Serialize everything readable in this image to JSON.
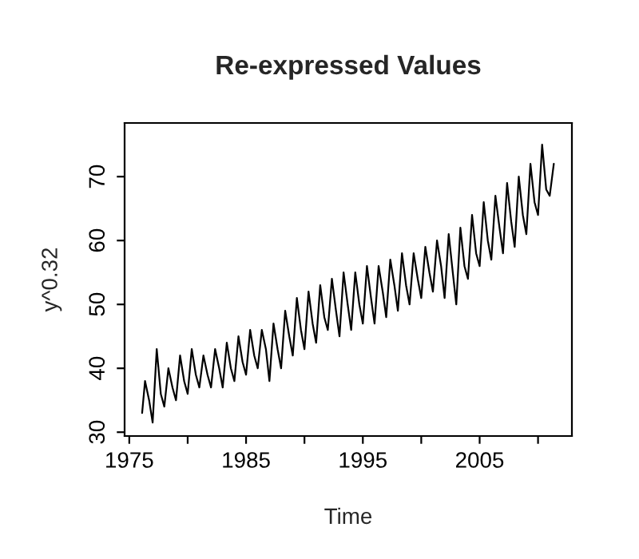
{
  "chart_data": {
    "type": "line",
    "title": "Re-expressed Values",
    "xlabel": "Time",
    "ylabel": "y^0.32",
    "x": [
      1976.1,
      1976.35,
      1976.7,
      1977.0,
      1977.35,
      1977.7,
      1978.0,
      1978.35,
      1978.7,
      1979.0,
      1979.35,
      1979.7,
      1980.0,
      1980.35,
      1980.7,
      1981.0,
      1981.35,
      1981.7,
      1982.0,
      1982.35,
      1982.7,
      1983.0,
      1983.35,
      1983.7,
      1984.0,
      1984.35,
      1984.7,
      1985.0,
      1985.35,
      1985.7,
      1986.0,
      1986.35,
      1986.7,
      1987.0,
      1987.35,
      1987.7,
      1988.0,
      1988.35,
      1988.7,
      1989.0,
      1989.35,
      1989.7,
      1990.0,
      1990.35,
      1990.7,
      1991.0,
      1991.35,
      1991.7,
      1992.0,
      1992.35,
      1992.7,
      1993.0,
      1993.35,
      1993.7,
      1994.0,
      1994.35,
      1994.7,
      1995.0,
      1995.35,
      1995.7,
      1996.0,
      1996.35,
      1996.7,
      1997.0,
      1997.35,
      1997.7,
      1998.0,
      1998.35,
      1998.7,
      1999.0,
      1999.35,
      1999.7,
      2000.0,
      2000.35,
      2000.7,
      2001.0,
      2001.35,
      2001.7,
      2002.0,
      2002.35,
      2002.7,
      2003.0,
      2003.35,
      2003.7,
      2004.0,
      2004.35,
      2004.7,
      2005.0,
      2005.35,
      2005.7,
      2006.0,
      2006.35,
      2006.7,
      2007.0,
      2007.35,
      2007.7,
      2008.0,
      2008.35,
      2008.7,
      2009.0,
      2009.35,
      2009.7,
      2010.0,
      2010.35,
      2010.7,
      2011.0,
      2011.35
    ],
    "series": [
      {
        "color": "#000000",
        "values": [
          33,
          38,
          35,
          31.5,
          43,
          36,
          34,
          40,
          37,
          35,
          42,
          38,
          36,
          43,
          39,
          37,
          42,
          39,
          37,
          43,
          40,
          37,
          44,
          40,
          38,
          45,
          41,
          39,
          46,
          42,
          40,
          46,
          43,
          38,
          47,
          43,
          40,
          49,
          45,
          42,
          51,
          46,
          43,
          52,
          47,
          44,
          53,
          48,
          46,
          54,
          49,
          45,
          55,
          50,
          46,
          55,
          50,
          47,
          56,
          51,
          47,
          56,
          52,
          48,
          57,
          53,
          49,
          58,
          53,
          50,
          58,
          54,
          51,
          59,
          55,
          52,
          60,
          56,
          51,
          61,
          55,
          50,
          62,
          56,
          54,
          64,
          58,
          56,
          66,
          60,
          57,
          67,
          62,
          58,
          69,
          63,
          59,
          70,
          64,
          61,
          72,
          66,
          64,
          75,
          68,
          67,
          72
        ]
      }
    ],
    "xlim": [
      1974.6,
      2012.9
    ],
    "ylim": [
      29.4,
      78.4
    ],
    "xticks": [
      1975,
      {
        "value": 1980,
        "label": null
      },
      1985,
      {
        "value": 1990,
        "label": null
      },
      1995,
      {
        "value": 2000,
        "label": null
      },
      2005,
      {
        "value": 2010,
        "label": null
      }
    ],
    "yticks": [
      30,
      40,
      50,
      60,
      70
    ],
    "grid": false,
    "legend": false
  }
}
